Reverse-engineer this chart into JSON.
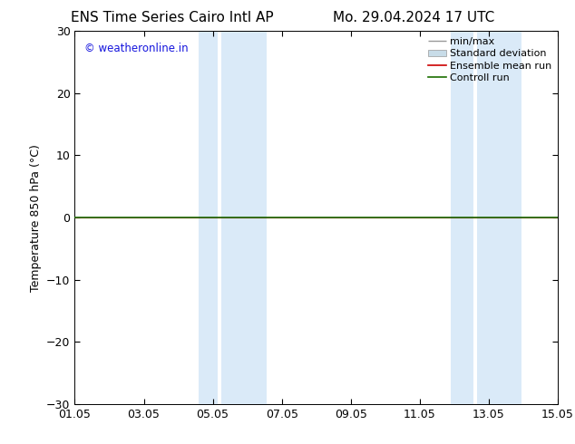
{
  "title_left": "ENS Time Series Cairo Intl AP",
  "title_right": "Mo. 29.04.2024 17 UTC",
  "ylabel": "Temperature 850 hPa (°C)",
  "ylim": [
    -30,
    30
  ],
  "yticks": [
    -30,
    -20,
    -10,
    0,
    10,
    20,
    30
  ],
  "xtick_labels": [
    "01.05",
    "03.05",
    "05.05",
    "07.05",
    "09.05",
    "11.05",
    "13.05",
    "15.05"
  ],
  "xtick_positions": [
    0,
    2,
    4,
    6,
    8,
    10,
    12,
    14
  ],
  "shaded_bands": [
    {
      "x_start": 3.5,
      "x_end": 4.2,
      "color": "#daeaf7"
    },
    {
      "x_start": 4.2,
      "x_end": 5.5,
      "color": "#daeaf7"
    },
    {
      "x_start": 10.8,
      "x_end": 11.5,
      "color": "#daeaf7"
    },
    {
      "x_start": 11.5,
      "x_end": 12.8,
      "color": "#daeaf7"
    }
  ],
  "control_run_color": "#1a6e00",
  "ensemble_mean_color": "#cc0000",
  "background_color": "#ffffff",
  "plot_bg_color": "#ffffff",
  "watermark_text": "© weatheronline.in",
  "watermark_color": "#1515dd",
  "legend_entries": [
    "min/max",
    "Standard deviation",
    "Ensemble mean run",
    "Controll run"
  ],
  "legend_colors_line": [
    "#aaaaaa",
    "#bbccdd",
    "#cc0000",
    "#1a6e00"
  ],
  "title_fontsize": 11,
  "axis_label_fontsize": 9,
  "tick_fontsize": 9,
  "legend_fontsize": 8
}
